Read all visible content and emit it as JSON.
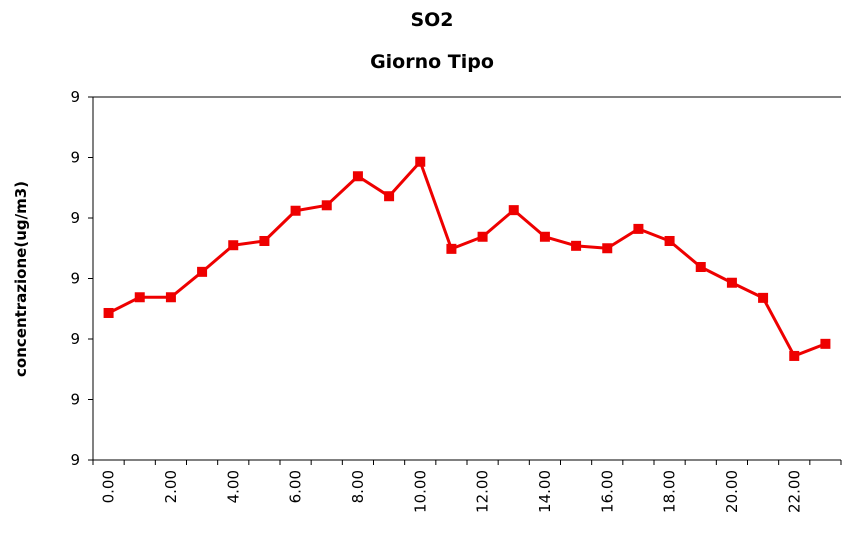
{
  "chart_data": {
    "type": "line",
    "title": "SO2",
    "subtitle": "Giorno Tipo",
    "y_label": "concentrazione(ug/m3)",
    "categories": [
      "0.00",
      null,
      "2.00",
      null,
      "4.00",
      null,
      "6.00",
      null,
      "8.00",
      null,
      "10.00",
      null,
      "12.00",
      null,
      "14.00",
      null,
      "16.00",
      null,
      "18.00",
      null,
      "20.00",
      null,
      "22.00",
      null
    ],
    "series": [
      {
        "name": "SO2",
        "color": "#ee0000",
        "values": [
          8.943,
          8.969,
          8.969,
          9.011,
          9.055,
          9.062,
          9.112,
          9.121,
          9.169,
          9.136,
          9.193,
          9.049,
          9.069,
          9.113,
          9.069,
          9.054,
          9.05,
          9.082,
          9.062,
          9.019,
          8.993,
          8.968,
          8.872,
          8.892
        ]
      }
    ],
    "ylim": [
      8.7,
      9.3
    ],
    "yticks": [
      {
        "value": 8.7,
        "label": "9"
      },
      {
        "value": 8.8,
        "label": "9"
      },
      {
        "value": 8.9,
        "label": "9"
      },
      {
        "value": 9.0,
        "label": "9"
      },
      {
        "value": 9.1,
        "label": "9"
      },
      {
        "value": 9.2,
        "label": "9"
      },
      {
        "value": 9.3,
        "label": "9"
      }
    ],
    "grid": false
  }
}
